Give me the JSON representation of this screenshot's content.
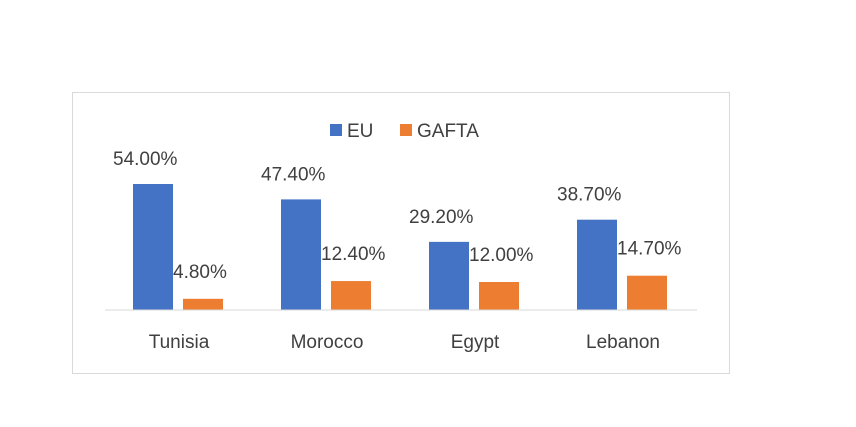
{
  "chart_data": {
    "type": "bar",
    "title": "",
    "xlabel": "",
    "ylabel": "",
    "categories": [
      "Tunisia",
      "Morocco",
      "Egypt",
      "Lebanon"
    ],
    "series": [
      {
        "name": "EU",
        "color": "#4472c4",
        "values": [
          54.0,
          47.4,
          29.2,
          38.7
        ],
        "labels": [
          "54.00%",
          "47.40%",
          "29.20%",
          "38.70%"
        ]
      },
      {
        "name": "GAFTA",
        "color": "#ed7d31",
        "values": [
          4.8,
          12.4,
          12.0,
          14.7
        ],
        "labels": [
          "4.80%",
          "12.40%",
          "12.00%",
          "14.70%"
        ]
      }
    ],
    "ylim": [
      0,
      60
    ],
    "grid": false,
    "legend": "top-center",
    "axis_color": "#d9d9d9"
  }
}
